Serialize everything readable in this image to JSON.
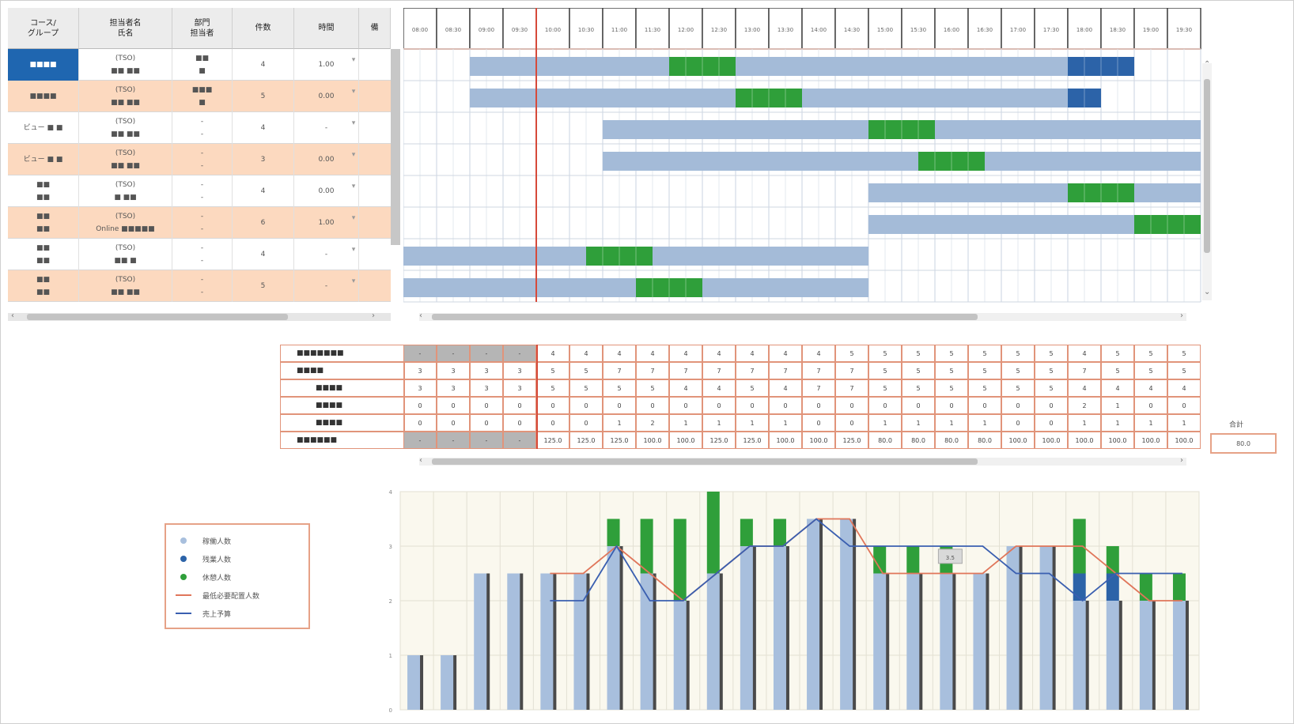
{
  "staff_table": {
    "headers": [
      "コース/\nグループ",
      "担当者名\n氏名",
      "部門\n担当者",
      "件数",
      "時間",
      "備"
    ],
    "rows": [
      {
        "group": "■■■■",
        "name": "(TSO)\n■■ ■■",
        "dept": "■■\n■",
        "count": "4",
        "hours": "1.00"
      },
      {
        "group": "■■■■",
        "name": "(TSO)\n■■ ■■",
        "dept": "■■■\n■",
        "count": "5",
        "hours": "0.00"
      },
      {
        "group": "ビュー ■ ■",
        "name": "(TSO)\n■■ ■■",
        "dept": "-\n-",
        "count": "4",
        "hours": "-"
      },
      {
        "group": "ビュー ■ ■",
        "name": "(TSO)\n■■ ■■",
        "dept": "-\n-",
        "count": "3",
        "hours": "0.00"
      },
      {
        "group": "■■\n■■",
        "name": "(TSO)\n■ ■■",
        "dept": "-\n-",
        "count": "4",
        "hours": "0.00"
      },
      {
        "group": "■■\n■■",
        "name": "(TSO)\nOnline ■■■■■",
        "dept": "-\n-",
        "count": "6",
        "hours": "1.00"
      },
      {
        "group": "■■\n■■",
        "name": "(TSO)\n■■ ■",
        "dept": "-\n-",
        "count": "4",
        "hours": "-"
      },
      {
        "group": "■■\n■■",
        "name": "(TSO)\n■■ ■■",
        "dept": "-\n-",
        "count": "5",
        "hours": "-"
      }
    ]
  },
  "time_slots": [
    "08:00",
    "08:30",
    "09:00",
    "09:30",
    "10:00",
    "10:30",
    "11:00",
    "11:30",
    "12:00",
    "12:30",
    "13:00",
    "13:30",
    "14:00",
    "14:30",
    "15:00",
    "15:30",
    "16:00",
    "16:30",
    "17:00",
    "17:30",
    "18:00",
    "18:30",
    "19:00",
    "19:30"
  ],
  "gantt_rows": [
    {
      "start": 2,
      "end": 20,
      "breaks": [
        [
          8,
          10,
          "green"
        ],
        [
          20,
          22,
          "blue"
        ]
      ]
    },
    {
      "start": 2,
      "end": 21,
      "breaks": [
        [
          10,
          12,
          "green"
        ],
        [
          20,
          21,
          "blue"
        ]
      ]
    },
    {
      "start": 6,
      "end": 24,
      "breaks": [
        [
          14,
          16,
          "green"
        ]
      ]
    },
    {
      "start": 6,
      "end": 24,
      "breaks": [
        [
          15.5,
          17.5,
          "green"
        ]
      ]
    },
    {
      "start": 14,
      "end": 24,
      "breaks": [
        [
          20,
          22,
          "green"
        ]
      ]
    },
    {
      "start": 14,
      "end": 22,
      "breaks": [
        [
          22,
          24,
          "green"
        ]
      ]
    },
    {
      "start": 0,
      "end": 14,
      "breaks": [
        [
          5.5,
          7.5,
          "green"
        ]
      ]
    },
    {
      "start": 0,
      "end": 14,
      "breaks": [
        [
          7,
          9,
          "green"
        ]
      ]
    }
  ],
  "current_time_slot": 4,
  "summary": {
    "labels": [
      "■■■■■■■",
      "■■■■",
      "■■■■",
      "■■■■",
      "■■■■",
      "■■■■■■"
    ],
    "rows": [
      [
        "-",
        "-",
        "-",
        "-",
        "4",
        "4",
        "4",
        "4",
        "4",
        "4",
        "4",
        "4",
        "4",
        "5",
        "5",
        "5",
        "5",
        "5",
        "5",
        "5",
        "4",
        "5",
        "5",
        "5"
      ],
      [
        "3",
        "3",
        "3",
        "3",
        "5",
        "5",
        "7",
        "7",
        "7",
        "7",
        "7",
        "7",
        "7",
        "7",
        "5",
        "5",
        "5",
        "5",
        "5",
        "5",
        "7",
        "5",
        "5",
        "5"
      ],
      [
        "3",
        "3",
        "3",
        "3",
        "5",
        "5",
        "5",
        "5",
        "4",
        "4",
        "5",
        "4",
        "7",
        "7",
        "5",
        "5",
        "5",
        "5",
        "5",
        "5",
        "4",
        "4",
        "4",
        "4"
      ],
      [
        "0",
        "0",
        "0",
        "0",
        "0",
        "0",
        "0",
        "0",
        "0",
        "0",
        "0",
        "0",
        "0",
        "0",
        "0",
        "0",
        "0",
        "0",
        "0",
        "0",
        "2",
        "1",
        "0",
        "0"
      ],
      [
        "0",
        "0",
        "0",
        "0",
        "0",
        "0",
        "1",
        "2",
        "1",
        "1",
        "1",
        "1",
        "0",
        "0",
        "1",
        "1",
        "1",
        "1",
        "0",
        "0",
        "1",
        "1",
        "1",
        "1"
      ],
      [
        "-",
        "-",
        "-",
        "-",
        "125.0",
        "125.0",
        "125.0",
        "100.0",
        "100.0",
        "125.0",
        "125.0",
        "100.0",
        "100.0",
        "125.0",
        "80.0",
        "80.0",
        "80.0",
        "80.0",
        "100.0",
        "100.0",
        "100.0",
        "100.0",
        "100.0",
        "100.0"
      ]
    ],
    "total_label": "合計",
    "total_value": "80.0"
  },
  "legend": {
    "items": [
      {
        "label": "稼働人数",
        "color": "#a8bfdd",
        "shape": "dot"
      },
      {
        "label": "残業人数",
        "color": "#2c63a8",
        "shape": "dot"
      },
      {
        "label": "休憩人数",
        "color": "#2f9f3a",
        "shape": "dot"
      },
      {
        "label": "最低必要配置人数",
        "color": "#e0765a",
        "shape": "line"
      },
      {
        "label": "売上予算",
        "color": "#3a5fb0",
        "shape": "line"
      }
    ]
  },
  "chart_data": {
    "type": "bar",
    "categories": [
      "08:00",
      "08:30",
      "09:00",
      "09:30",
      "10:00",
      "10:30",
      "11:00",
      "11:30",
      "12:00",
      "12:30",
      "13:00",
      "13:30",
      "14:00",
      "14:30",
      "15:00",
      "15:30",
      "16:00",
      "16:30",
      "17:00",
      "17:30",
      "18:00",
      "18:30",
      "19:00",
      "19:30"
    ],
    "ylim": [
      0,
      4
    ],
    "yticks": [
      "0",
      "1",
      "2",
      "3",
      "4"
    ],
    "series": [
      {
        "name": "稼働人数",
        "values": [
          1,
          1,
          2.5,
          2.5,
          2.5,
          2.5,
          3,
          2.5,
          2,
          2.5,
          3,
          3,
          3.5,
          3.5,
          2.5,
          2.5,
          2.5,
          2.5,
          3,
          3,
          2,
          2,
          2,
          2
        ]
      },
      {
        "name": "残業人数",
        "values": [
          0,
          0,
          0,
          0,
          0,
          0,
          0,
          0,
          0,
          0,
          0,
          0,
          0,
          0,
          0,
          0,
          0,
          0,
          0,
          0,
          0.5,
          0.5,
          0,
          0
        ]
      },
      {
        "name": "休憩人数",
        "values": [
          0,
          0,
          0,
          0,
          0,
          0,
          0.5,
          1,
          1.5,
          1.5,
          0.5,
          0.5,
          0,
          0,
          0.5,
          0.5,
          0.5,
          0,
          0,
          0,
          1,
          0.5,
          0.5,
          0.5
        ]
      },
      {
        "name": "最低必要配置人数",
        "values": [
          null,
          null,
          null,
          null,
          2.5,
          2.5,
          3,
          2.5,
          2,
          2.5,
          3,
          3,
          3.5,
          3.5,
          2.5,
          2.5,
          2.5,
          2.5,
          3,
          3,
          3,
          2.5,
          2,
          2
        ]
      },
      {
        "name": "売上予算",
        "values": [
          null,
          null,
          null,
          null,
          2,
          2,
          3,
          2,
          2,
          2.5,
          3,
          3,
          3.5,
          3,
          3,
          3,
          3,
          3,
          2.5,
          2.5,
          2,
          2.5,
          2.5,
          2.5
        ]
      }
    ],
    "annotation": "3.5"
  }
}
